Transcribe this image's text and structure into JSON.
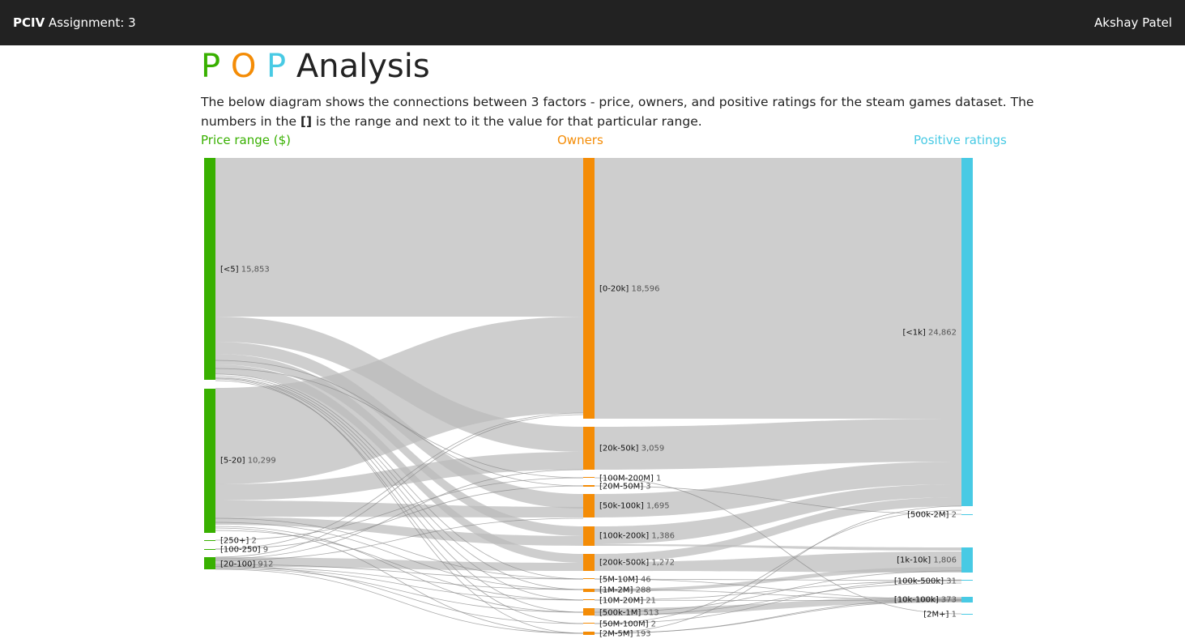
{
  "header": {
    "brand_bold": "PCIV",
    "brand_rest": " Assignment: 3",
    "user": "Akshay Patel"
  },
  "title": {
    "p1": "P",
    "o": "O",
    "p2": "P",
    "rest": " Analysis"
  },
  "description": {
    "line1": "The below diagram shows the connections between 3 factors - price, owners, and positive ratings for the steam games dataset. The numbers in the ",
    "bracket": "[]",
    "line2": " is the range and next to it the value for that particular range."
  },
  "columns": {
    "price": "Price range ($)",
    "owners": "Owners",
    "ratings": "Positive ratings"
  },
  "colors": {
    "price": "#38b000",
    "owners": "#f48c06",
    "ratings": "#48cae4",
    "link": "#bbbbbb",
    "text": "#222222"
  },
  "diagram_data": {
    "price_nodes": [
      {
        "label": "[<5]",
        "value": "15,853"
      },
      {
        "label": "[5-20]",
        "value": "10,299"
      },
      {
        "label": "[250+]",
        "value": "2"
      },
      {
        "label": "[100-250]",
        "value": "9"
      },
      {
        "label": "[20-100]",
        "value": "912"
      }
    ],
    "owner_nodes": [
      {
        "label": "[0-20k]",
        "value": "18,596"
      },
      {
        "label": "[20k-50k]",
        "value": "3,059"
      },
      {
        "label": "[100M-200M]",
        "value": "1"
      },
      {
        "label": "[20M-50M]",
        "value": "3"
      },
      {
        "label": "[50k-100k]",
        "value": "1,695"
      },
      {
        "label": "[100k-200k]",
        "value": "1,386"
      },
      {
        "label": "[200k-500k]",
        "value": "1,272"
      },
      {
        "label": "[5M-10M]",
        "value": "46"
      },
      {
        "label": "[1M-2M]",
        "value": "288"
      },
      {
        "label": "[10M-20M]",
        "value": "21"
      },
      {
        "label": "[500k-1M]",
        "value": "513"
      },
      {
        "label": "[50M-100M]",
        "value": "2"
      },
      {
        "label": "[2M-5M]",
        "value": "193"
      }
    ],
    "rating_nodes": [
      {
        "label": "[<1k]",
        "value": "24,862"
      },
      {
        "label": "[500k-2M]",
        "value": "2"
      },
      {
        "label": "[1k-10k]",
        "value": "1,806"
      },
      {
        "label": "[100k-500k]",
        "value": "31"
      },
      {
        "label": "[10k-100k]",
        "value": "373"
      },
      {
        "label": "[2M+]",
        "value": "1"
      }
    ]
  }
}
